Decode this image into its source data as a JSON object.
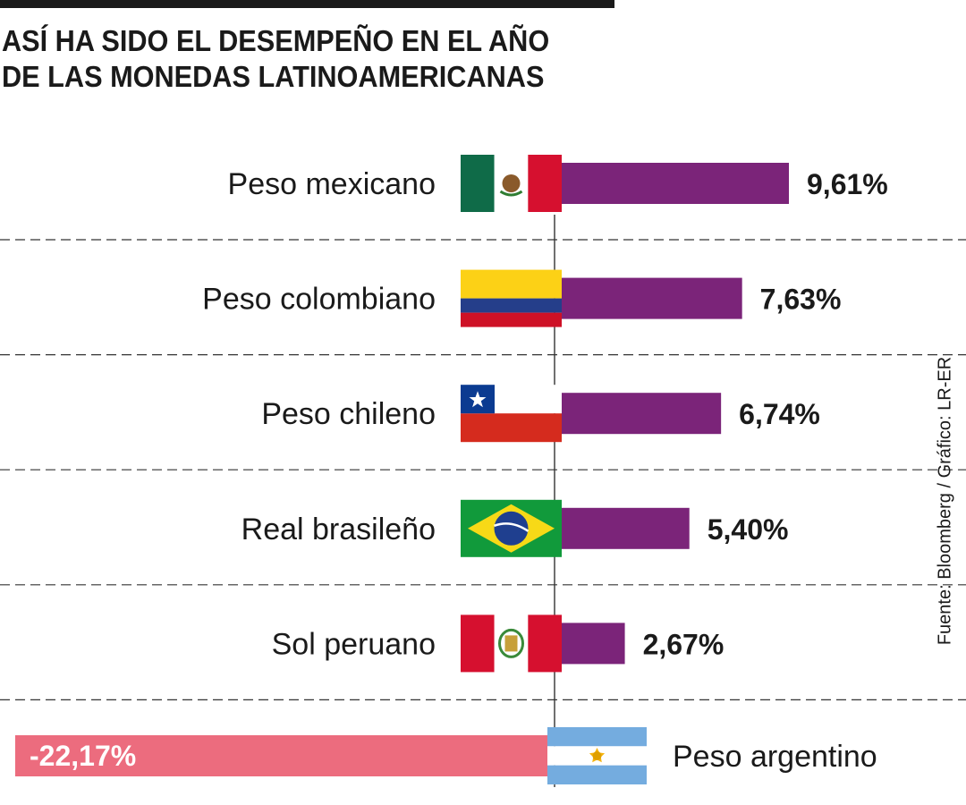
{
  "title_lines": [
    "ASÍ HA SIDO EL DESEMPEÑO EN EL AÑO",
    "DE LAS MONEDAS LATINOAMERICANAS"
  ],
  "source": "Fuente: Bloomberg / Gráfico: LR-ER",
  "chart_data": {
    "type": "bar",
    "orientation": "horizontal",
    "title": "ASÍ HA SIDO EL DESEMPEÑO EN EL AÑO DE LAS MONEDAS LATINOAMERICANAS",
    "categories": [
      "Peso mexicano",
      "Peso colombiano",
      "Peso chileno",
      "Real brasileño",
      "Sol peruano",
      "Peso argentino"
    ],
    "values": [
      9.61,
      7.63,
      6.74,
      5.4,
      2.67,
      -22.17
    ],
    "value_labels": [
      "9,61%",
      "7,63%",
      "6,74%",
      "5,40%",
      "2,67%",
      "-22,17%"
    ],
    "unit": "%",
    "flags": [
      "mexico-flag",
      "colombia-flag",
      "chile-flag",
      "brazil-flag",
      "peru-flag",
      "argentina-flag"
    ],
    "colors": {
      "positive": "#7b2479",
      "negative": "#ec6c7e",
      "text": "#1a1a1a",
      "negative_label": "#ffffff"
    },
    "grid": "dashed separators between rows"
  }
}
